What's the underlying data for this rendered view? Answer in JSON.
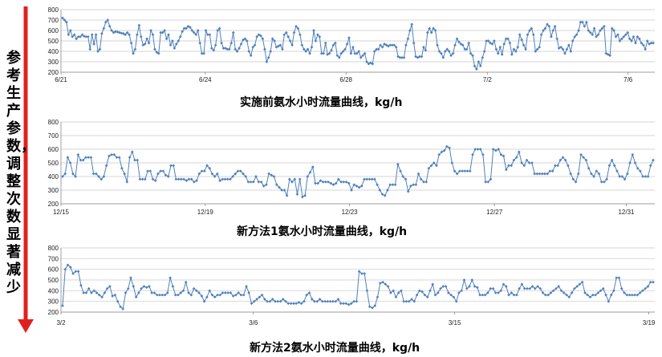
{
  "side_caption": "参考生产参数，调整次数显著减少",
  "colors": {
    "series": "#4f81bd",
    "arrow": "#e02020",
    "grid": "#c8c8c8"
  },
  "chart_data": [
    {
      "type": "line",
      "title": "实施前氨水小时流量曲线，kg/h",
      "ylim": [
        200,
        800
      ],
      "yticks": [
        200,
        300,
        400,
        500,
        600,
        700,
        800
      ],
      "x_ticks": [
        {
          "label": "6/21",
          "pos": 0.0
        },
        {
          "label": "6/24",
          "pos": 0.243
        },
        {
          "label": "6/28",
          "pos": 0.48
        },
        {
          "label": "7/2",
          "pos": 0.718
        },
        {
          "label": "7/6",
          "pos": 0.955
        }
      ],
      "grid": true,
      "values": [
        720,
        700,
        680,
        560,
        600,
        540,
        560,
        520,
        540,
        540,
        560,
        545,
        540,
        540,
        420,
        560,
        470,
        560,
        400,
        420,
        570,
        620,
        680,
        700,
        640,
        600,
        580,
        590,
        585,
        580,
        575,
        570,
        560,
        580,
        560,
        480,
        380,
        420,
        560,
        650,
        540,
        460,
        470,
        520,
        480,
        600,
        560,
        420,
        390,
        380,
        580,
        580,
        600,
        520,
        560,
        460,
        500,
        430,
        470,
        500,
        540,
        590,
        620,
        620,
        640,
        630,
        600,
        580,
        560,
        600,
        480,
        380,
        380,
        600,
        560,
        560,
        430,
        410,
        460,
        600,
        620,
        480,
        430,
        430,
        420,
        420,
        480,
        580,
        420,
        400,
        430,
        470,
        510,
        520,
        500,
        400,
        360,
        440,
        460,
        540,
        560,
        550,
        520,
        420,
        300,
        340,
        400,
        520,
        500,
        440,
        450,
        460,
        420,
        560,
        580,
        540,
        500,
        460,
        580,
        640,
        620,
        560,
        460,
        420,
        400,
        420,
        380,
        440,
        600,
        500,
        560,
        540,
        380,
        380,
        480,
        370,
        380,
        410,
        460,
        480,
        360,
        340,
        380,
        400,
        420,
        470,
        530,
        380,
        440,
        380,
        380,
        400,
        340,
        360,
        380,
        300,
        280,
        290,
        280,
        400,
        420,
        420,
        460,
        440,
        470,
        460,
        450,
        460,
        460,
        460,
        440,
        350,
        340,
        340,
        340,
        460,
        520,
        600,
        660,
        480,
        350,
        340,
        350,
        350,
        440,
        410,
        580,
        620,
        580,
        620,
        600,
        460,
        400,
        380,
        340,
        400,
        420,
        400,
        360,
        380,
        460,
        520,
        490,
        470,
        460,
        420,
        420,
        480,
        380,
        360,
        260,
        230,
        300,
        260,
        340,
        400,
        500,
        500,
        480,
        470,
        500,
        420,
        380,
        440,
        370,
        470,
        520,
        520,
        480,
        370,
        420,
        400,
        440,
        560,
        510,
        460,
        420,
        560,
        600,
        620,
        560,
        400,
        420,
        440,
        560,
        600,
        620,
        660,
        640,
        540,
        600,
        640,
        520,
        430,
        440,
        420,
        380,
        420,
        460,
        400,
        500,
        540,
        560,
        600,
        680,
        680,
        640,
        680,
        600,
        580,
        560,
        620,
        540,
        560,
        600,
        620,
        640,
        380,
        370,
        360,
        620,
        600,
        540,
        560,
        500,
        520,
        540,
        560,
        580,
        520,
        500,
        540,
        480,
        540,
        520,
        480,
        460,
        420,
        500,
        470,
        480,
        480
      ]
    },
    {
      "type": "line",
      "title": "新方法1氨水小时流量曲线，kg/h",
      "ylim": [
        200,
        800
      ],
      "yticks": [
        200,
        300,
        400,
        500,
        600,
        700,
        800
      ],
      "x_ticks": [
        {
          "label": "12/15",
          "pos": 0.0
        },
        {
          "label": "12/19",
          "pos": 0.243
        },
        {
          "label": "12/23",
          "pos": 0.486
        },
        {
          "label": "12/27",
          "pos": 0.73
        },
        {
          "label": "12/31",
          "pos": 0.952
        }
      ],
      "grid": true,
      "values": [
        400,
        420,
        540,
        500,
        420,
        400,
        560,
        520,
        520,
        540,
        540,
        540,
        420,
        420,
        400,
        380,
        400,
        480,
        550,
        560,
        560,
        540,
        540,
        460,
        420,
        360,
        540,
        580,
        520,
        520,
        380,
        380,
        380,
        440,
        440,
        380,
        370,
        420,
        440,
        440,
        410,
        400,
        480,
        480,
        380,
        380,
        380,
        380,
        370,
        380,
        380,
        360,
        370,
        420,
        440,
        440,
        480,
        460,
        420,
        400,
        420,
        370,
        380,
        380,
        380,
        380,
        400,
        420,
        440,
        440,
        420,
        400,
        360,
        360,
        360,
        400,
        360,
        360,
        330,
        340,
        420,
        410,
        400,
        340,
        320,
        300,
        300,
        260,
        380,
        360,
        380,
        270,
        380,
        250,
        260,
        400,
        430,
        470,
        350,
        350,
        370,
        360,
        360,
        360,
        350,
        340,
        350,
        380,
        360,
        360,
        360,
        350,
        300,
        340,
        330,
        320,
        330,
        380,
        380,
        380,
        380,
        380,
        340,
        300,
        270,
        260,
        300,
        340,
        340,
        340,
        490,
        440,
        400,
        380,
        290,
        330,
        340,
        340,
        420,
        380,
        360,
        360,
        460,
        480,
        500,
        480,
        560,
        580,
        590,
        620,
        610,
        500,
        440,
        420,
        440,
        440,
        440,
        440,
        440,
        560,
        600,
        600,
        600,
        560,
        360,
        360,
        380,
        600,
        590,
        600,
        560,
        550,
        450,
        480,
        480,
        520,
        540,
        580,
        500,
        480,
        520,
        500,
        500,
        420,
        420,
        420,
        420,
        420,
        420,
        440,
        440,
        480,
        480,
        520,
        540,
        520,
        480,
        420,
        380,
        360,
        420,
        560,
        540,
        520,
        460,
        420,
        400,
        440,
        420,
        360,
        360,
        380,
        480,
        520,
        480,
        440,
        400,
        400,
        380,
        420,
        500,
        560,
        500,
        460,
        440,
        400,
        400,
        400,
        480,
        520
      ]
    },
    {
      "type": "line",
      "title": "新方法2氨水小时流量曲线，kg/h",
      "ylim": [
        200,
        800
      ],
      "yticks": [
        200,
        300,
        400,
        500,
        600,
        700,
        800
      ],
      "x_ticks": [
        {
          "label": "3/2",
          "pos": 0.0
        },
        {
          "label": "3/6",
          "pos": 0.324
        },
        {
          "label": "3/15",
          "pos": 0.663
        },
        {
          "label": "3/19",
          "pos": 0.99
        }
      ],
      "grid": true,
      "values": [
        260,
        600,
        640,
        620,
        560,
        580,
        580,
        450,
        380,
        380,
        420,
        380,
        400,
        380,
        360,
        340,
        380,
        420,
        440,
        350,
        360,
        300,
        250,
        230,
        380,
        420,
        520,
        440,
        340,
        380,
        420,
        440,
        430,
        440,
        380,
        380,
        360,
        360,
        360,
        360,
        380,
        520,
        440,
        360,
        360,
        380,
        400,
        480,
        380,
        360,
        420,
        400,
        380,
        350,
        300,
        340,
        400,
        360,
        340,
        360,
        360,
        380,
        380,
        380,
        380,
        350,
        360,
        380,
        360,
        360,
        440,
        380,
        280,
        300,
        320,
        340,
        360,
        320,
        300,
        300,
        320,
        300,
        300,
        300,
        320,
        300,
        280,
        280,
        280,
        280,
        290,
        280,
        300,
        360,
        380,
        320,
        300,
        300,
        320,
        300,
        300,
        300,
        300,
        300,
        300,
        320,
        280,
        280,
        280,
        270,
        280,
        300,
        300,
        580,
        560,
        560,
        400,
        250,
        240,
        260,
        340,
        470,
        480,
        460,
        440,
        380,
        400,
        340,
        380,
        400,
        300,
        300,
        300,
        320,
        300,
        360,
        400,
        390,
        360,
        340,
        400,
        460,
        360,
        380,
        420,
        440,
        440,
        380,
        360,
        340,
        300,
        380,
        400,
        500,
        420,
        440,
        500,
        440,
        430,
        360,
        360,
        360,
        380,
        420,
        420,
        380,
        380,
        400,
        460,
        440,
        360,
        380,
        360,
        360,
        420,
        460,
        420,
        420,
        420,
        440,
        420,
        440,
        420,
        380,
        360,
        360,
        380,
        400,
        420,
        440,
        400,
        380,
        360,
        340,
        380,
        420,
        440,
        460,
        480,
        380,
        360,
        340,
        360,
        360,
        380,
        400,
        420,
        360,
        300,
        360,
        400,
        520,
        520,
        420,
        380,
        360,
        360,
        360,
        360,
        360,
        380,
        400,
        420,
        440,
        480,
        480
      ]
    }
  ]
}
